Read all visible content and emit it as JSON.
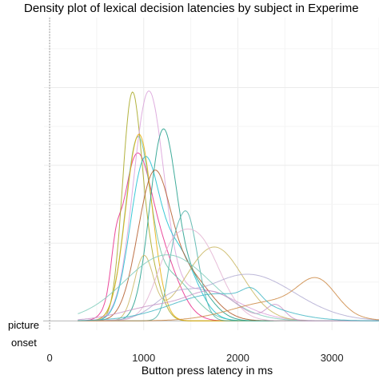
{
  "chart_data": {
    "type": "line",
    "title": "Density plot of lexical decision latencies by subject in Experime",
    "xlabel": "Button press latency in ms",
    "ylabel": "",
    "xlim": [
      -60,
      3500
    ],
    "ylim": [
      -0.00012,
      0.0039
    ],
    "x_ticks": [
      0,
      1000,
      2000,
      3000
    ],
    "grid": true,
    "legend": "none",
    "marker": {
      "x": 0,
      "label_line1": "picture",
      "label_line2": "onset"
    },
    "series": [
      {
        "color": "#e7298a",
        "bumps": [
          [
            900,
            150,
            0.0017
          ],
          [
            1150,
            200,
            0.0009
          ],
          [
            700,
            50,
            0.0004
          ]
        ]
      },
      {
        "color": "#a6a61e",
        "bumps": [
          [
            870,
            100,
            0.0027
          ],
          [
            1050,
            120,
            0.0007
          ]
        ]
      },
      {
        "color": "#66c2a5",
        "bumps": [
          [
            930,
            130,
            0.0021
          ],
          [
            1250,
            250,
            0.0006
          ]
        ]
      },
      {
        "color": "#d9a0d9",
        "bumps": [
          [
            1050,
            160,
            0.0028
          ],
          [
            1600,
            400,
            0.0004
          ]
        ]
      },
      {
        "color": "#17becf",
        "bumps": [
          [
            1000,
            150,
            0.0019
          ],
          [
            1350,
            200,
            0.0009
          ]
        ]
      },
      {
        "color": "#e6ab02",
        "bumps": [
          [
            950,
            140,
            0.0024
          ]
        ]
      },
      {
        "color": "#1f9e89",
        "bumps": [
          [
            1200,
            140,
            0.0023
          ],
          [
            1500,
            200,
            0.0005
          ]
        ]
      },
      {
        "color": "#b15928",
        "bumps": [
          [
            1100,
            170,
            0.0017
          ],
          [
            1450,
            250,
            0.0006
          ]
        ]
      },
      {
        "color": "#4fb3a9",
        "bumps": [
          [
            1450,
            120,
            0.0014
          ],
          [
            1300,
            60,
            0.0003
          ]
        ]
      },
      {
        "color": "#c9b660",
        "bumps": [
          [
            1750,
            300,
            0.00095
          ],
          [
            1000,
            100,
            0.0008
          ]
        ]
      },
      {
        "color": "#e3b1d1",
        "bumps": [
          [
            1550,
            250,
            0.0011
          ],
          [
            1250,
            150,
            0.0004
          ]
        ]
      },
      {
        "color": "#7fcdbb",
        "bumps": [
          [
            1250,
            450,
            0.00085
          ]
        ]
      },
      {
        "color": "#b2abd2",
        "bumps": [
          [
            2100,
            500,
            0.0006
          ],
          [
            1300,
            200,
            0.0002
          ]
        ]
      },
      {
        "color": "#c994c7",
        "bumps": [
          [
            1200,
            400,
            0.0002
          ],
          [
            2400,
            100,
            0.0002
          ],
          [
            1750,
            250,
            0.0003
          ]
        ]
      },
      {
        "color": "#cc8844",
        "bumps": [
          [
            2400,
            450,
            0.00025
          ],
          [
            2850,
            200,
            0.0004
          ]
        ]
      },
      {
        "color": "#41b6c4",
        "bumps": [
          [
            1800,
            500,
            0.00035
          ],
          [
            2150,
            100,
            0.00015
          ]
        ]
      }
    ]
  }
}
